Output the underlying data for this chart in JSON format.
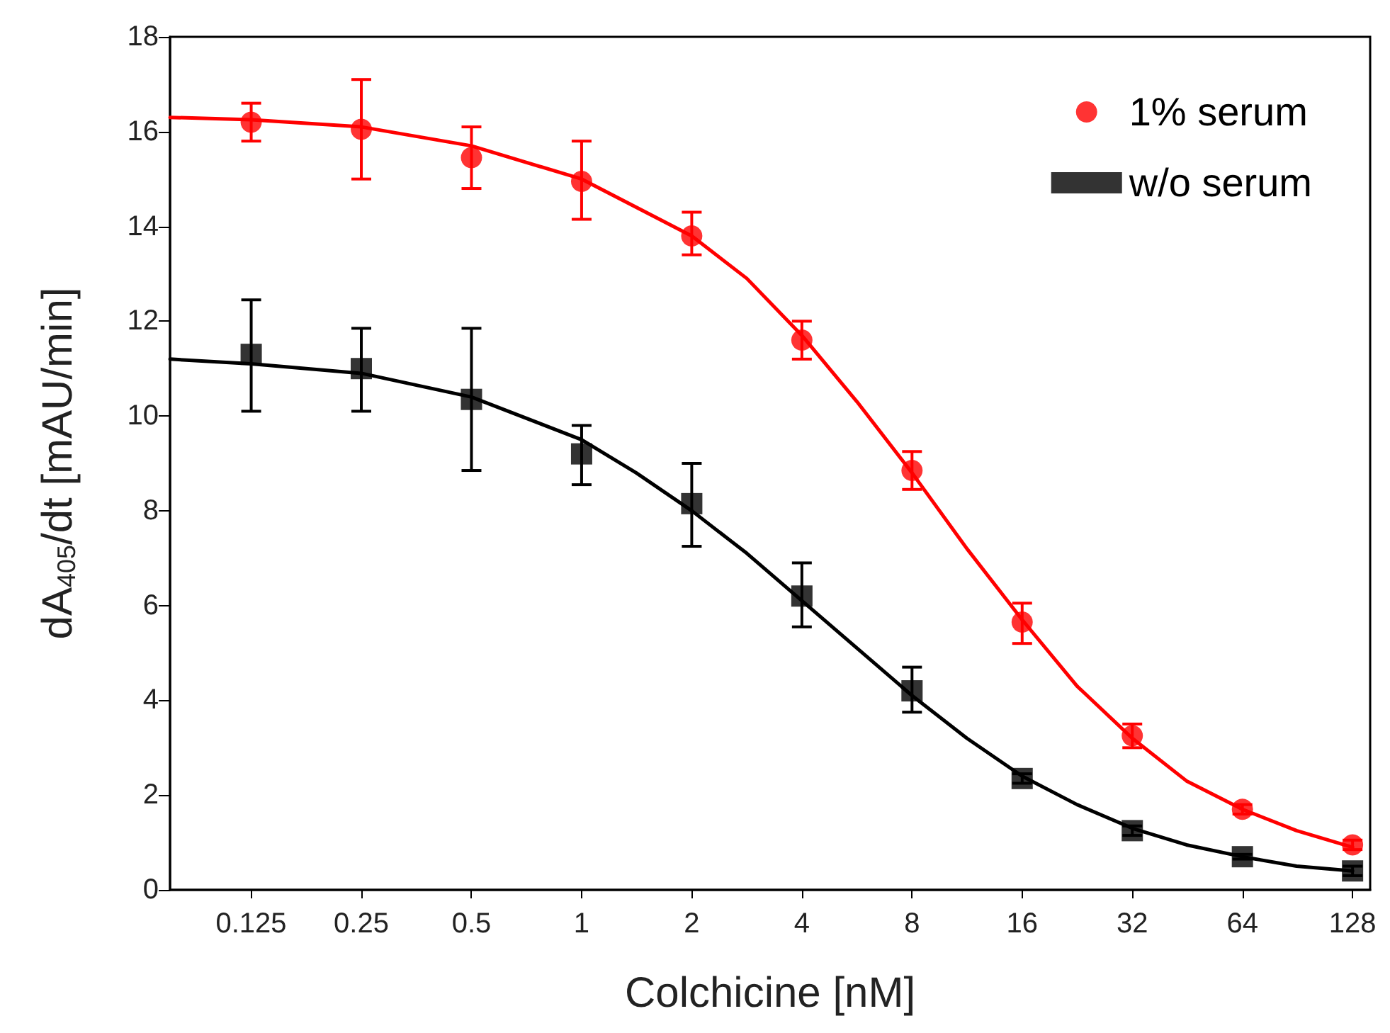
{
  "chart_data": {
    "type": "scatter",
    "xlabel": "Colchicine [nM]",
    "ylabel": "dA$_{405}$/dt [mAU/min]",
    "log": "x",
    "xlim": [
      0.075,
      143
    ],
    "xticks": [
      0.125,
      0.25,
      0.5,
      1,
      2,
      4,
      8,
      16,
      32,
      64,
      128
    ],
    "ylim": [
      0,
      18
    ],
    "yticks": [
      0,
      2,
      4,
      6,
      8,
      10,
      12,
      14,
      16,
      18
    ],
    "grid": false,
    "legend": "top right",
    "x": [
      0.125,
      0.25,
      0.5,
      1,
      2,
      4,
      8,
      16,
      32,
      64,
      128
    ],
    "series": [
      {
        "name": "1% serum",
        "color": "#ff0000",
        "marker": "circle",
        "values": [
          16.2,
          16.05,
          15.45,
          14.95,
          13.8,
          11.6,
          8.85,
          5.65,
          3.25,
          1.7,
          0.95
        ],
        "errors": [
          [
            15.8,
            16.6
          ],
          [
            15.0,
            17.1
          ],
          [
            14.8,
            16.1
          ],
          [
            14.15,
            15.8
          ],
          [
            13.4,
            14.3
          ],
          [
            11.2,
            12.0
          ],
          [
            8.45,
            9.25
          ],
          [
            5.2,
            6.05
          ],
          [
            3.0,
            3.5
          ],
          [
            1.6,
            1.8
          ],
          [
            0.85,
            1.05
          ]
        ]
      },
      {
        "name": "w/o serum",
        "color": "#000000",
        "marker": "square",
        "values": [
          11.3,
          11.0,
          10.35,
          9.2,
          8.15,
          6.2,
          4.2,
          2.35,
          1.25,
          0.7,
          0.4
        ],
        "errors": [
          [
            10.1,
            12.45
          ],
          [
            10.1,
            11.85
          ],
          [
            8.85,
            11.85
          ],
          [
            8.55,
            9.8
          ],
          [
            7.25,
            9.0
          ],
          [
            5.55,
            6.9
          ],
          [
            3.75,
            4.7
          ],
          [
            2.25,
            2.45
          ],
          [
            1.15,
            1.35
          ],
          [
            0.65,
            0.75
          ],
          [
            0.3,
            0.5
          ]
        ]
      },
      {
        "type": "line",
        "color": "#ff0000",
        "marker": "none",
        "x": [
          0.075,
          0.125,
          0.25,
          0.5,
          1,
          2,
          2.83,
          4,
          5.66,
          8,
          11.3,
          16,
          22.6,
          32,
          45,
          64,
          90,
          128
        ],
        "values": [
          16.3,
          16.25,
          16.1,
          15.7,
          15.0,
          13.8,
          12.9,
          11.7,
          10.3,
          8.8,
          7.2,
          5.7,
          4.3,
          3.2,
          2.3,
          1.7,
          1.25,
          0.9
        ]
      },
      {
        "type": "line",
        "color": "#000000",
        "marker": "none",
        "x": [
          0.075,
          0.125,
          0.25,
          0.5,
          1,
          1.41,
          2,
          2.83,
          4,
          5.66,
          8,
          11.3,
          16,
          22.6,
          32,
          45,
          64,
          90,
          128
        ],
        "values": [
          11.2,
          11.1,
          10.9,
          10.4,
          9.5,
          8.8,
          8.0,
          7.1,
          6.1,
          5.1,
          4.1,
          3.2,
          2.4,
          1.8,
          1.3,
          0.95,
          0.7,
          0.5,
          0.4
        ]
      }
    ]
  }
}
